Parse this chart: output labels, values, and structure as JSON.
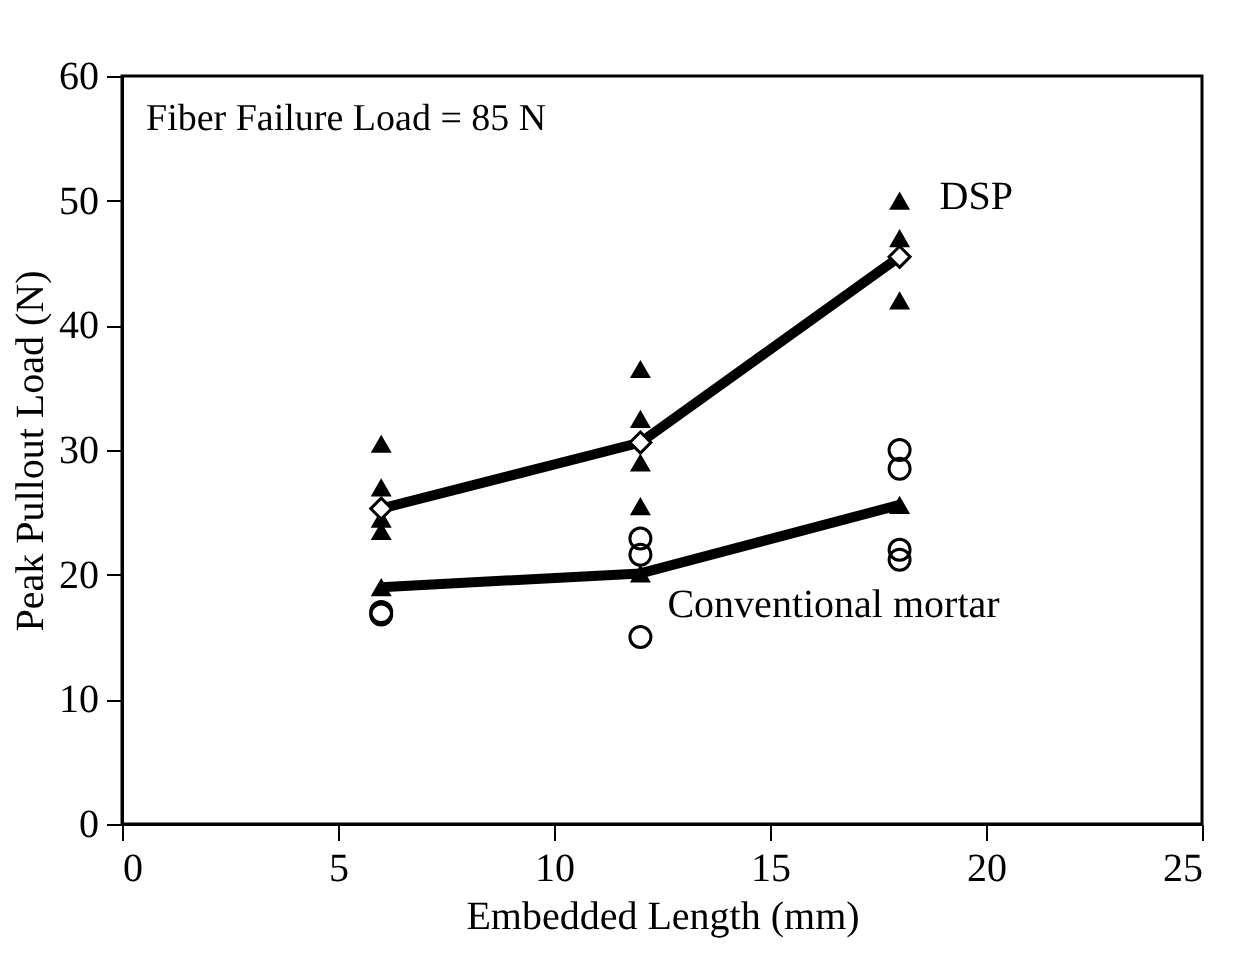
{
  "chart_data": {
    "type": "scatter",
    "xlabel": "Embedded Length (mm)",
    "ylabel": "Peak Pullout Load (N)",
    "annotations": [
      "Fiber Failure Load = 85 N"
    ],
    "xlim": [
      0,
      25
    ],
    "xticks": [
      0,
      5,
      10,
      15,
      20,
      25
    ],
    "ylim": [
      0,
      60
    ],
    "yticks": [
      0,
      10,
      20,
      30,
      40,
      50,
      60
    ],
    "grid": false,
    "legend": false,
    "series": [
      {
        "marker": "triangle",
        "color": "#000000",
        "x": [
          6,
          6,
          6,
          6,
          12,
          12,
          12,
          12,
          18,
          18,
          18
        ],
        "values": [
          30.5,
          27,
          24.5,
          23.5,
          36.5,
          32.5,
          29,
          25.5,
          50,
          47,
          42
        ]
      },
      {
        "marker": "circle",
        "color": "#000000",
        "x": [
          6,
          6,
          12,
          12,
          12,
          18,
          18,
          18,
          18
        ],
        "values": [
          17,
          16.8,
          22.9,
          21.6,
          15,
          30,
          28.5,
          22,
          21.2
        ]
      },
      {
        "type": "line",
        "name": "DSP",
        "marker": "diamond",
        "color": "#000000",
        "x": [
          6,
          12,
          18
        ],
        "values": [
          25.3,
          30.6,
          45.5
        ]
      },
      {
        "type": "line",
        "name": "Conventional mortar",
        "marker": "triangle",
        "color": "#000000",
        "x": [
          6,
          12,
          18
        ],
        "values": [
          19,
          20.1,
          25.6
        ]
      }
    ]
  }
}
